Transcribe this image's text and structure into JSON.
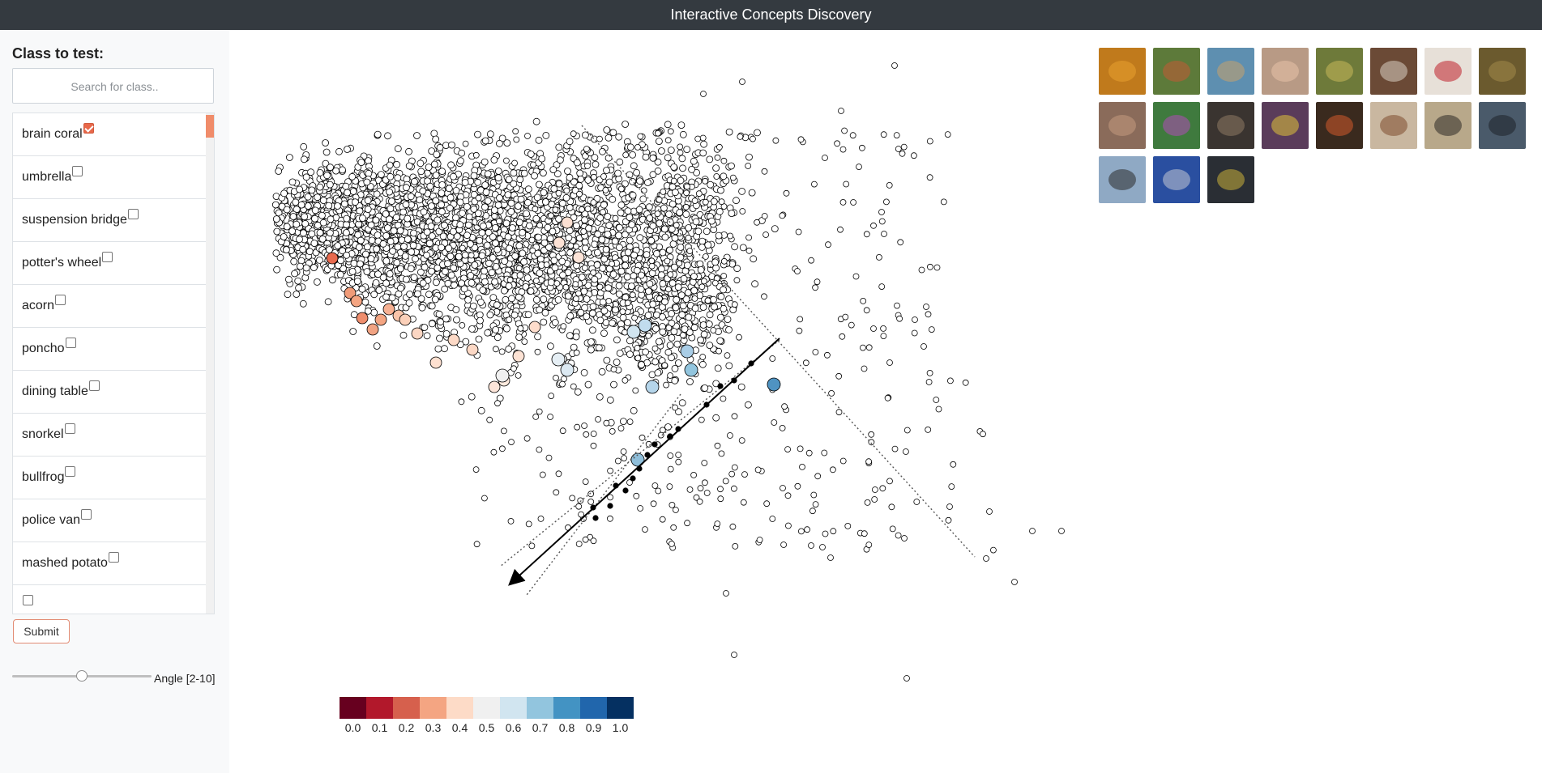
{
  "app": {
    "title": "Interactive Concepts Discovery"
  },
  "sidebar": {
    "heading": "Class to test:",
    "search": {
      "placeholder": "Search for class..",
      "value": ""
    },
    "classes": [
      {
        "label": "brain coral",
        "checked": true
      },
      {
        "label": "umbrella",
        "checked": false
      },
      {
        "label": "suspension bridge",
        "checked": false
      },
      {
        "label": "potter's wheel",
        "checked": false
      },
      {
        "label": "acorn",
        "checked": false
      },
      {
        "label": "poncho",
        "checked": false
      },
      {
        "label": "dining table",
        "checked": false
      },
      {
        "label": "snorkel",
        "checked": false
      },
      {
        "label": "bullfrog",
        "checked": false
      },
      {
        "label": "police van",
        "checked": false
      },
      {
        "label": "mashed potato",
        "checked": false
      },
      {
        "label": "",
        "checked": false
      }
    ],
    "submit_label": "Submit",
    "angle": {
      "label": "Angle [2-10]",
      "min": 2,
      "max": 10,
      "value": 6
    }
  },
  "thumbnails": [
    {
      "icon": "orange-fruit-image",
      "color": "#c07a1c",
      "accent": "#e8a030"
    },
    {
      "icon": "pomegranate-tree-image",
      "color": "#5d7a3a",
      "accent": "#c35a35"
    },
    {
      "icon": "bread-image",
      "color": "#5e8fb0",
      "accent": "#c9a36b"
    },
    {
      "icon": "noodle-dish-image",
      "color": "#b89a85",
      "accent": "#e7c2a8"
    },
    {
      "icon": "plant-flowers-image",
      "color": "#6e7a3a",
      "accent": "#c9b85a"
    },
    {
      "icon": "hallway-image",
      "color": "#6b4a36",
      "accent": "#d9cfc3"
    },
    {
      "icon": "red-lamp-image",
      "color": "#e7e0d8",
      "accent": "#c0202c"
    },
    {
      "icon": "moss-texture-image",
      "color": "#6b5a2e",
      "accent": "#a38a4a"
    },
    {
      "icon": "hands-image",
      "color": "#8a6b5a",
      "accent": "#c49a80"
    },
    {
      "icon": "purple-box-image",
      "color": "#3f7a3e",
      "accent": "#b24ab8"
    },
    {
      "icon": "mushrooms-image",
      "color": "#3a3430",
      "accent": "#8e7a64"
    },
    {
      "icon": "person-cooking-image",
      "color": "#5a3c5a",
      "accent": "#e0c33a"
    },
    {
      "icon": "paella-pan-image",
      "color": "#3a2a1e",
      "accent": "#d2592b"
    },
    {
      "icon": "room-items-image",
      "color": "#c9b7a0",
      "accent": "#7e4c2e"
    },
    {
      "icon": "frying-pan-image",
      "color": "#b8a88a",
      "accent": "#2e2a26"
    },
    {
      "icon": "cookware-image",
      "color": "#4a5a6a",
      "accent": "#1e2228"
    },
    {
      "icon": "beach-image",
      "color": "#8fa9c4",
      "accent": "#2c2c2c"
    },
    {
      "icon": "diving-gear-image",
      "color": "#2a4fa0",
      "accent": "#c2c8d4"
    },
    {
      "icon": "engine-parts-image",
      "color": "#2a2e34",
      "accent": "#c8b13a"
    }
  ],
  "legend": {
    "ticks": [
      "0.0",
      "0.1",
      "0.2",
      "0.3",
      "0.4",
      "0.5",
      "0.6",
      "0.7",
      "0.8",
      "0.9",
      "1.0"
    ],
    "colors": [
      "#67001f",
      "#b2182b",
      "#d6604d",
      "#f4a582",
      "#fddbc7",
      "#f0f0f0",
      "#d1e5f0",
      "#92c5de",
      "#4393c3",
      "#2166ac",
      "#053061"
    ]
  }
}
